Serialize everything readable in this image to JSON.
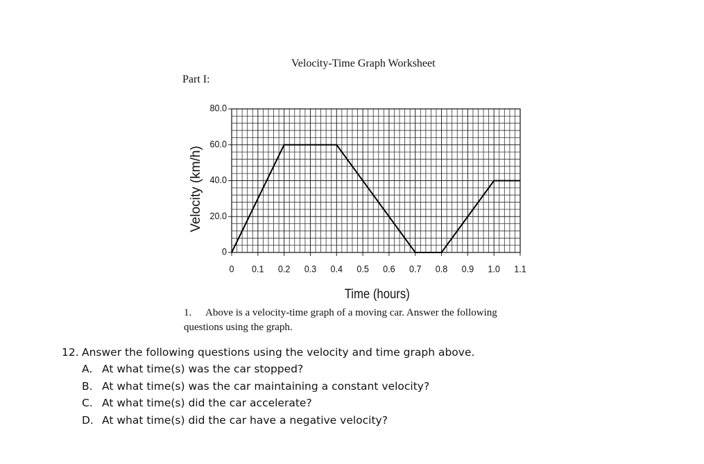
{
  "title": "Velocity-Time Graph Worksheet",
  "part": "Part I:",
  "chart_data": {
    "type": "line",
    "x": [
      0,
      0.2,
      0.4,
      0.7,
      0.8,
      1.0,
      1.1
    ],
    "values": [
      0,
      60,
      60,
      0,
      0,
      40,
      40
    ],
    "color": "#000000",
    "xlabel": "Time (hours)",
    "ylabel": "Velocity (km/h)",
    "xlim": [
      0,
      1.1
    ],
    "ylim": [
      0,
      80
    ],
    "xticks": [
      0,
      0.1,
      0.2,
      0.3,
      0.4,
      0.5,
      0.6,
      0.7,
      0.8,
      0.9,
      {
        "value": 1,
        "label": "1.0"
      },
      1.1
    ],
    "yticks": [
      0,
      {
        "value": 20,
        "label": "20.0"
      },
      {
        "value": 40,
        "label": "40.0"
      },
      {
        "value": 60,
        "label": "60.0"
      },
      {
        "value": 80,
        "label": "80.0"
      }
    ],
    "grid": true
  },
  "note": {
    "number": "1.",
    "text": "Above is a velocity-time graph of a moving car. Answer the following questions using the graph."
  },
  "question": {
    "number": "12.",
    "text": "Answer the following questions using the velocity and time graph above.",
    "items": [
      {
        "letter": "A.",
        "text": "At what time(s) was the car stopped?"
      },
      {
        "letter": "B.",
        "text": "At what time(s) was the car maintaining a constant velocity?"
      },
      {
        "letter": "C.",
        "text": "At what time(s) did the car accelerate?"
      },
      {
        "letter": "D.",
        "text": "At what time(s) did the car have a negative velocity?"
      }
    ]
  }
}
